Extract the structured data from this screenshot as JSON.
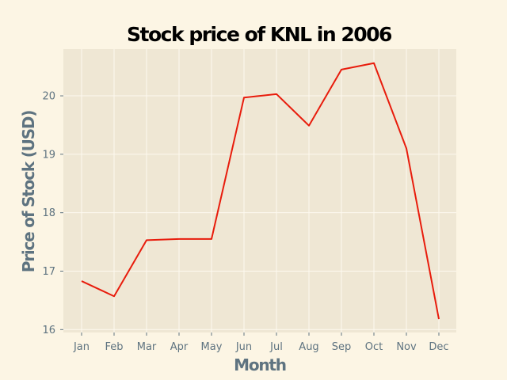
{
  "chart_data": {
    "type": "line",
    "title": "Stock price of KNL in 2006",
    "xlabel": "Month",
    "ylabel": "Price of Stock (USD)",
    "categories": [
      "Jan",
      "Feb",
      "Mar",
      "Apr",
      "May",
      "Jun",
      "Jul",
      "Aug",
      "Sep",
      "Oct",
      "Nov",
      "Dec"
    ],
    "series": [
      {
        "values": [
          16.83,
          16.57,
          17.53,
          17.55,
          17.55,
          19.97,
          20.03,
          19.49,
          20.45,
          20.56,
          19.1,
          16.18
        ]
      }
    ],
    "yticks": [
      16,
      17,
      18,
      19,
      20
    ],
    "ylim": [
      15.95,
      20.8
    ],
    "grid": true,
    "colors": {
      "line": "#e81c0c",
      "plot_background": "#efe7d4",
      "page_background": "#fcf5e4",
      "grid": "#fdf9ef",
      "text": "#5e7380"
    }
  }
}
